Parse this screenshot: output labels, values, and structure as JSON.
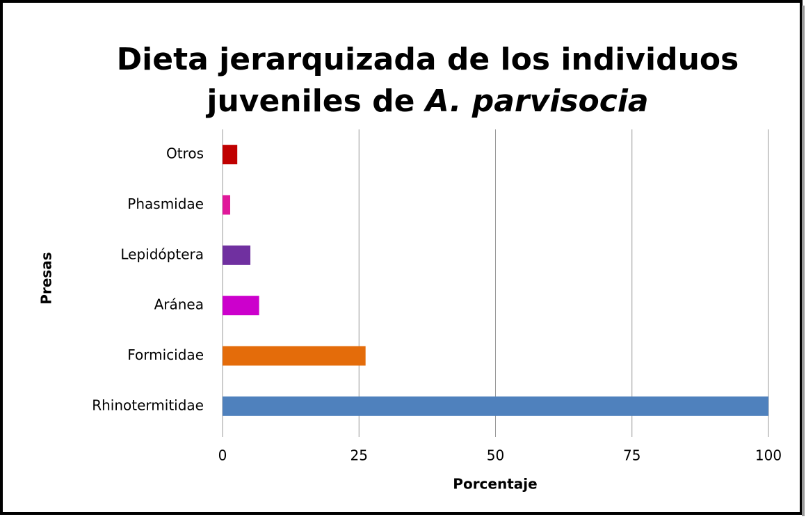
{
  "chart_data": {
    "type": "barh",
    "title": [
      "Dieta jerarquizada de los individuos",
      "juveniles de ",
      "A. parvisocia"
    ],
    "xlabel": "Porcentaje",
    "ylabel": "Presas",
    "categories": [
      "Rhinotermitidae",
      "Formicidae",
      "Aránea",
      "Lepidóptera",
      "Phasmidae",
      "Otros"
    ],
    "values": [
      100,
      26.2,
      6.7,
      5.1,
      1.4,
      2.7
    ],
    "colors": [
      "#4f81bd",
      "#e46c0a",
      "#cc00cc",
      "#7030a0",
      "#e0189a",
      "#c00000"
    ],
    "xlim": [
      0,
      100
    ],
    "xticks": [
      0,
      25,
      50,
      75,
      100
    ],
    "grid": true
  }
}
